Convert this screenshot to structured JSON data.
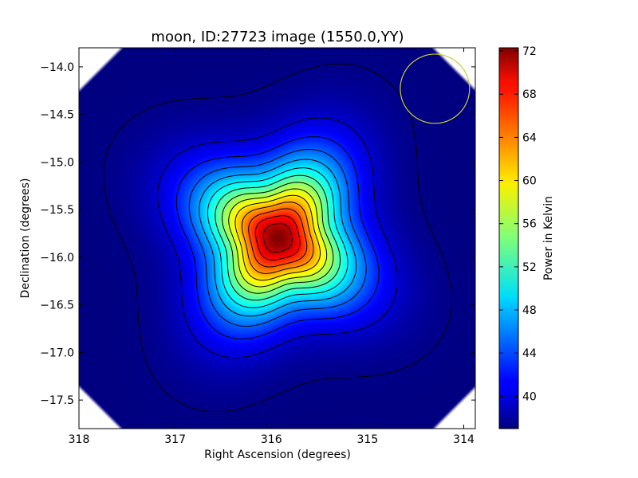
{
  "chart_data": {
    "type": "heatmap",
    "title": "moon, ID:27723 image (1550.0,YY)",
    "xlabel": "Right Ascension (degrees)",
    "ylabel": "Declination (degrees)",
    "xlim": [
      318.0,
      313.88
    ],
    "ylim": [
      -17.8,
      -13.8
    ],
    "x_ticks": [
      {
        "value": 318,
        "label": "318"
      },
      {
        "value": 317,
        "label": "317"
      },
      {
        "value": 316,
        "label": "316"
      },
      {
        "value": 315,
        "label": "315"
      },
      {
        "value": 314,
        "label": "314"
      }
    ],
    "y_ticks": [
      {
        "value": -14.0,
        "label": "−14.0"
      },
      {
        "value": -14.5,
        "label": "−14.5"
      },
      {
        "value": -15.0,
        "label": "−15.0"
      },
      {
        "value": -15.5,
        "label": "−15.5"
      },
      {
        "value": -16.0,
        "label": "−16.0"
      },
      {
        "value": -16.5,
        "label": "−16.5"
      },
      {
        "value": -17.0,
        "label": "−17.0"
      },
      {
        "value": -17.5,
        "label": "−17.5"
      }
    ],
    "source": {
      "ra": 315.93,
      "dec": -15.8,
      "peak": 72.3,
      "background": 37.0
    },
    "contour_levels": [
      37.3,
      39.8,
      42.3,
      44.8,
      47.3,
      49.8,
      52.3,
      54.8,
      57.3,
      59.8,
      62.3,
      64.8,
      67.3,
      69.8
    ],
    "beam_circle": {
      "ra": 314.3,
      "dec": -14.23,
      "radius_deg": 0.36,
      "color": "#cccc33"
    },
    "colormap": "jet",
    "colorbar": {
      "label": "Power in Kelvin",
      "min": 37.0,
      "max": 72.3,
      "ticks": [
        {
          "value": 40,
          "label": "40"
        },
        {
          "value": 44,
          "label": "44"
        },
        {
          "value": 48,
          "label": "48"
        },
        {
          "value": 52,
          "label": "52"
        },
        {
          "value": 56,
          "label": "56"
        },
        {
          "value": 60,
          "label": "60"
        },
        {
          "value": 64,
          "label": "64"
        },
        {
          "value": 68,
          "label": "68"
        },
        {
          "value": 72,
          "label": "72"
        }
      ]
    }
  }
}
